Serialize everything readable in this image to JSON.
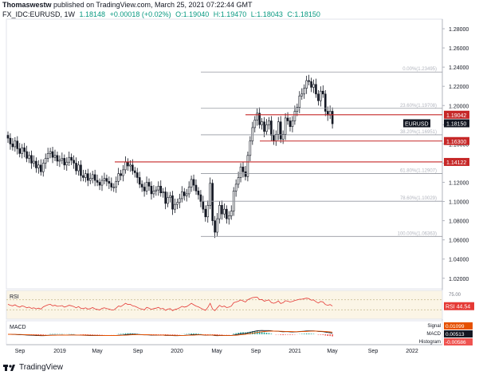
{
  "header": {
    "author": "Thomaswestw",
    "published_text": "published on TradingView.com, March 25, 2021 07:22:44 GMT",
    "symbol": "FX_IDC:EURUSD, 1W",
    "last": "1.18148",
    "change": "+0.00018 (+0.02%)",
    "open": "O:1.19040",
    "high": "H:1.19470",
    "low": "L:1.18043",
    "close": "C:1.18150"
  },
  "footer": {
    "brand": "TradingView"
  },
  "chart_data": {
    "type": "candlestick",
    "price_axis": {
      "ticks": [
        "1.28000",
        "1.26000",
        "1.24000",
        "1.22000",
        "1.20000",
        "1.18000",
        "1.16000",
        "1.14000",
        "1.12000",
        "1.10000",
        "1.08000",
        "1.06000",
        "1.04000",
        "1.02000"
      ],
      "range": [
        1.009,
        1.29
      ]
    },
    "time_axis": {
      "labels": [
        "Sep",
        "2019",
        "May",
        "Sep",
        "2020",
        "May",
        "Sep",
        "2021",
        "May",
        "Sep",
        "2022"
      ]
    },
    "fib_levels": [
      {
        "label": "0.00%(1.23495)",
        "value": 1.23495
      },
      {
        "label": "23.60%(1.19708)",
        "value": 1.19708
      },
      {
        "label": "38.20%(1.16951)",
        "value": 1.16951
      },
      {
        "label": "61.80%(1.12907)",
        "value": 1.12907
      },
      {
        "label": "78.60%(1.10029)",
        "value": 1.10029
      },
      {
        "label": "100.00%(1.06363)",
        "value": 1.06363
      }
    ],
    "horizontal_levels": [
      {
        "label": "1.19042",
        "value": 1.19042,
        "color": "#c62828"
      },
      {
        "label": "1.16300",
        "value": 1.163,
        "color": "#c62828"
      },
      {
        "label": "1.14122",
        "value": 1.14122,
        "color": "#c62828"
      }
    ],
    "price_tag": {
      "label": "EURUSD",
      "value": "1.18150",
      "y": 1.1815
    },
    "closes": [
      1.166,
      1.16,
      1.157,
      1.163,
      1.155,
      1.15,
      1.156,
      1.152,
      1.145,
      1.148,
      1.14,
      1.142,
      1.135,
      1.138,
      1.131,
      1.14,
      1.145,
      1.15,
      1.152,
      1.146,
      1.148,
      1.142,
      1.143,
      1.145,
      1.138,
      1.141,
      1.146,
      1.143,
      1.14,
      1.132,
      1.138,
      1.127,
      1.125,
      1.129,
      1.122,
      1.124,
      1.128,
      1.122,
      1.12,
      1.117,
      1.122,
      1.124,
      1.121,
      1.119,
      1.115,
      1.115,
      1.121,
      1.129,
      1.127,
      1.133,
      1.141,
      1.137,
      1.138,
      1.132,
      1.13,
      1.125,
      1.118,
      1.115,
      1.111,
      1.12,
      1.116,
      1.108,
      1.111,
      1.112,
      1.116,
      1.109,
      1.11,
      1.098,
      1.104,
      1.106,
      1.092,
      1.097,
      1.099,
      1.103,
      1.11,
      1.106,
      1.108,
      1.115,
      1.123,
      1.117,
      1.111,
      1.107,
      1.1,
      1.092,
      1.084,
      1.096,
      1.119,
      1.08,
      1.068,
      1.082,
      1.096,
      1.087,
      1.092,
      1.082,
      1.085,
      1.09,
      1.111,
      1.118,
      1.125,
      1.136,
      1.131,
      1.126,
      1.148,
      1.163,
      1.177,
      1.185,
      1.192,
      1.18,
      1.183,
      1.173,
      1.18,
      1.184,
      1.169,
      1.163,
      1.17,
      1.183,
      1.165,
      1.17,
      1.187,
      1.184,
      1.178,
      1.184,
      1.194,
      1.198,
      1.21,
      1.212,
      1.218,
      1.226,
      1.225,
      1.219,
      1.222,
      1.212,
      1.205,
      1.215,
      1.212,
      1.194,
      1.19,
      1.194,
      1.181
    ],
    "rsi": {
      "label": "RSI",
      "value": "44.54",
      "tick": "75.00",
      "overbought": 70,
      "oversold": 30,
      "range": [
        0,
        100
      ],
      "values": [
        52,
        48,
        46,
        50,
        44,
        41,
        46,
        43,
        38,
        41,
        36,
        38,
        34,
        37,
        33,
        42,
        46,
        50,
        52,
        46,
        48,
        44,
        45,
        47,
        41,
        44,
        48,
        46,
        43,
        38,
        43,
        36,
        35,
        38,
        33,
        35,
        39,
        34,
        32,
        30,
        36,
        38,
        35,
        33,
        30,
        30,
        37,
        45,
        43,
        49,
        56,
        51,
        52,
        46,
        44,
        40,
        35,
        33,
        30,
        40,
        37,
        32,
        35,
        37,
        40,
        34,
        36,
        28,
        33,
        35,
        27,
        32,
        34,
        38,
        44,
        41,
        43,
        49,
        56,
        50,
        45,
        42,
        37,
        32,
        28,
        40,
        56,
        33,
        27,
        38,
        48,
        42,
        45,
        39,
        41,
        45,
        58,
        61,
        64,
        69,
        65,
        61,
        70,
        74,
        78,
        79,
        80,
        70,
        71,
        64,
        67,
        69,
        59,
        56,
        59,
        65,
        55,
        58,
        66,
        64,
        61,
        63,
        67,
        69,
        72,
        72,
        74,
        76,
        74,
        68,
        69,
        62,
        57,
        63,
        61,
        51,
        48,
        51,
        45
      ]
    },
    "macd": {
      "label": "MACD",
      "signal_label": "Signal",
      "macd_label": "MACD",
      "histogram_label": "Histogram",
      "signal": "0.01099",
      "macd": "0.00513",
      "histogram": "-0.00586"
    }
  }
}
